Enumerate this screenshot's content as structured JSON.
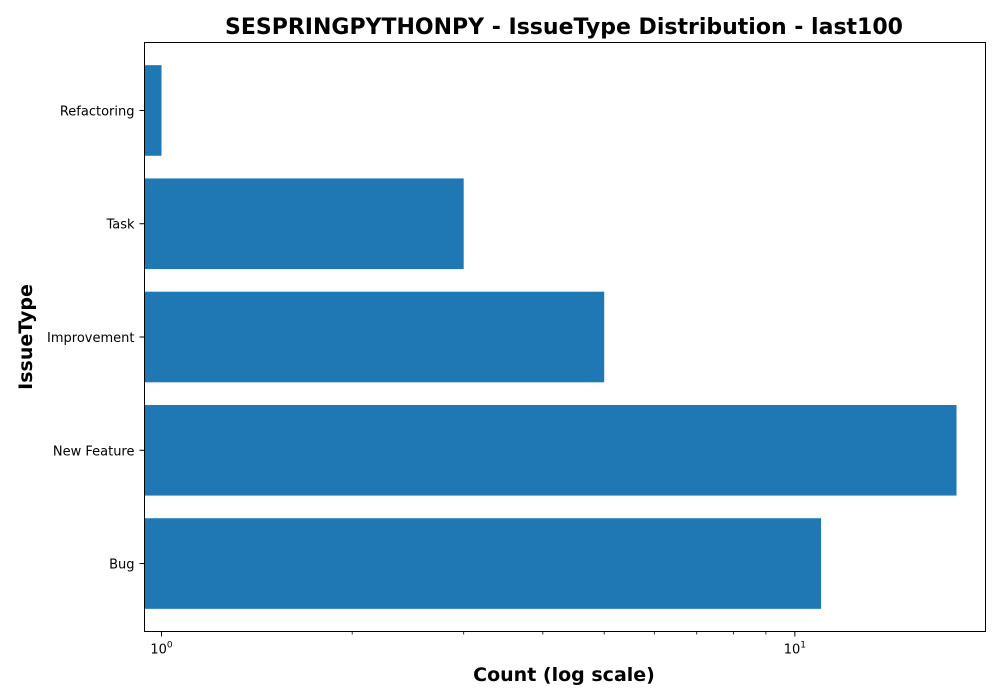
{
  "chart_data": {
    "type": "bar",
    "orientation": "horizontal",
    "title": "SESPRINGPYTHONPY - IssueType Distribution - last100",
    "xlabel": "Count (log scale)",
    "ylabel": "IssueType",
    "x_scale": "log",
    "xlim": [
      0.94,
      20.0
    ],
    "grid": false,
    "categories": [
      "Bug",
      "New Feature",
      "Improvement",
      "Task",
      "Refactoring"
    ],
    "values": [
      11,
      18,
      5,
      3,
      1
    ],
    "x_major_ticks": [
      {
        "value": 1,
        "base": "10",
        "exp": "0"
      },
      {
        "value": 10,
        "base": "10",
        "exp": "1"
      }
    ],
    "bar_color": "#1f77b4"
  }
}
